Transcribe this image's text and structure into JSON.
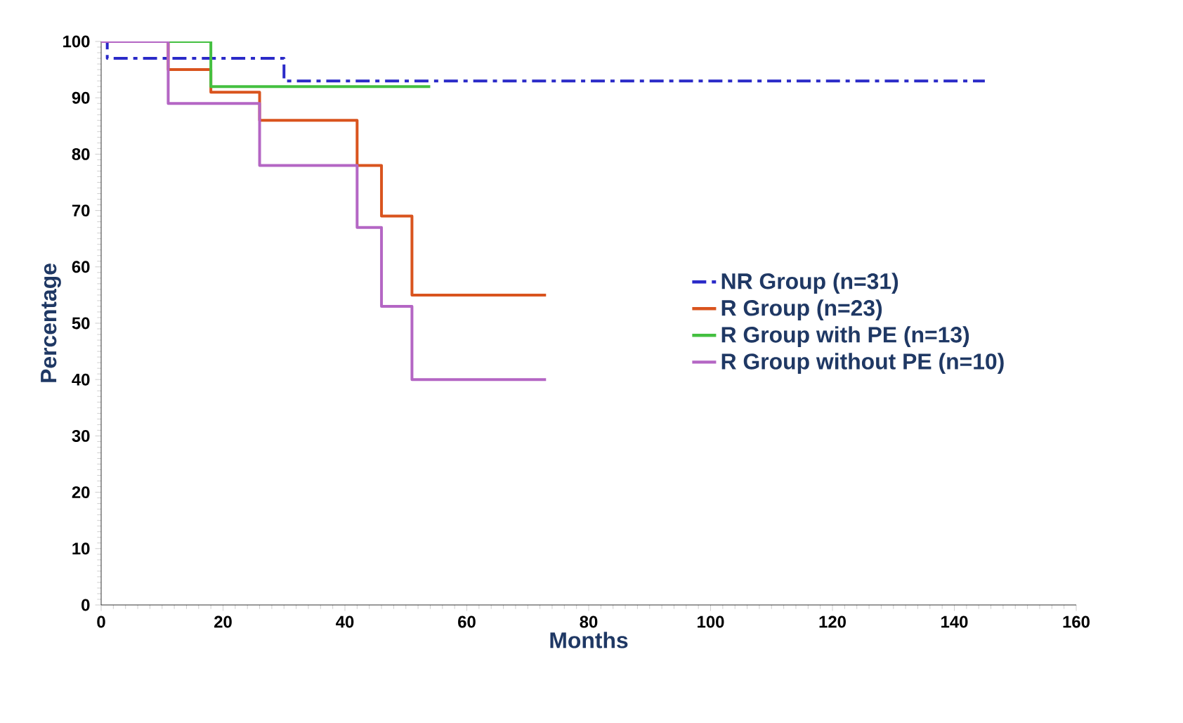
{
  "chart_data": {
    "type": "step",
    "xlabel": "Months",
    "ylabel": "Percentage",
    "xlim": [
      0,
      160
    ],
    "xticks": [
      0,
      20,
      40,
      60,
      80,
      100,
      120,
      140,
      160
    ],
    "ylim": [
      0,
      100
    ],
    "yticks": [
      0,
      10,
      20,
      30,
      40,
      50,
      60,
      70,
      80,
      90,
      100
    ],
    "legend": "right",
    "grid": false,
    "marker": "none",
    "series": [
      {
        "name": "NR Group (n=31)",
        "color": "#2a2ac8",
        "line_style": "dashdot",
        "x": [
          0,
          1,
          30,
          145
        ],
        "values": [
          100,
          97,
          93,
          93
        ]
      },
      {
        "name": "R Group (n=23)",
        "color": "#d9541e",
        "line_style": "solid",
        "x": [
          0,
          11,
          18,
          26,
          42,
          46,
          51,
          73
        ],
        "values": [
          100,
          95,
          91,
          86,
          78,
          69,
          55,
          55
        ]
      },
      {
        "name": "R Group with PE (n=13)",
        "color": "#44c040",
        "line_style": "solid",
        "x": [
          0,
          18,
          54
        ],
        "values": [
          100,
          92,
          92
        ]
      },
      {
        "name": "R Group without PE (n=10)",
        "color": "#b466c4",
        "line_style": "solid",
        "x": [
          0,
          11,
          26,
          42,
          46,
          51,
          73
        ],
        "values": [
          100,
          89,
          78,
          67,
          53,
          40,
          40
        ]
      }
    ]
  }
}
